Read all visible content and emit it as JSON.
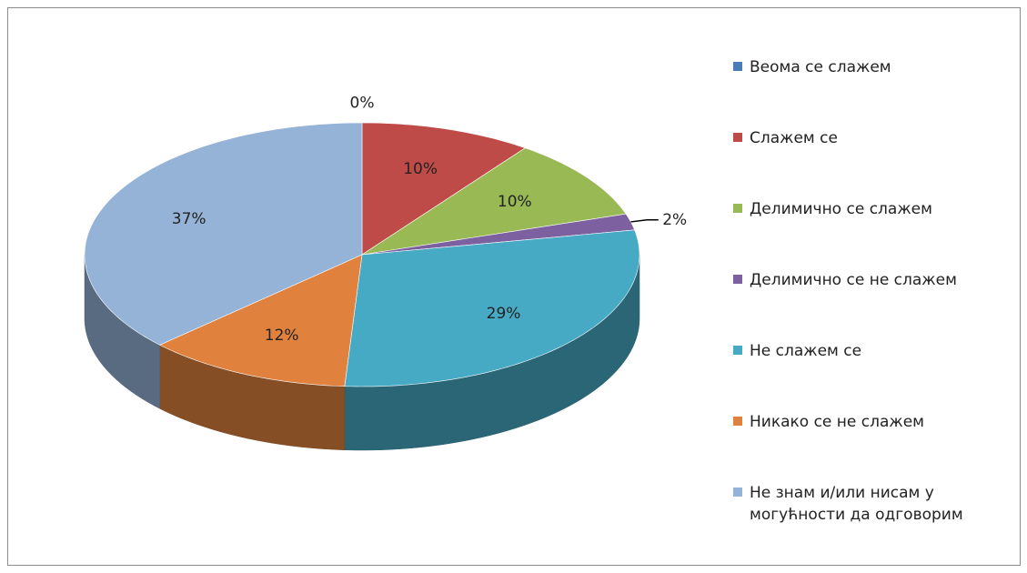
{
  "chart_data": {
    "type": "pie",
    "categories": [
      "Веома се слажем",
      "Слажем се",
      "Делимично се слажем",
      "Делимично се не слажем",
      "Не слажем се",
      "Никако се не слажем",
      "Не знам и/или нисам у могућности да одговорим"
    ],
    "values": [
      0,
      10,
      10,
      2,
      29,
      12,
      37
    ],
    "value_labels": [
      "0%",
      "10%",
      "10%",
      "2%",
      "29%",
      "12%",
      "37%"
    ],
    "colors": [
      "#4a7ebb",
      "#be4b48",
      "#98b954",
      "#7d60a0",
      "#46aac5",
      "#e0823d",
      "#95b3d7"
    ],
    "legend": "right"
  }
}
